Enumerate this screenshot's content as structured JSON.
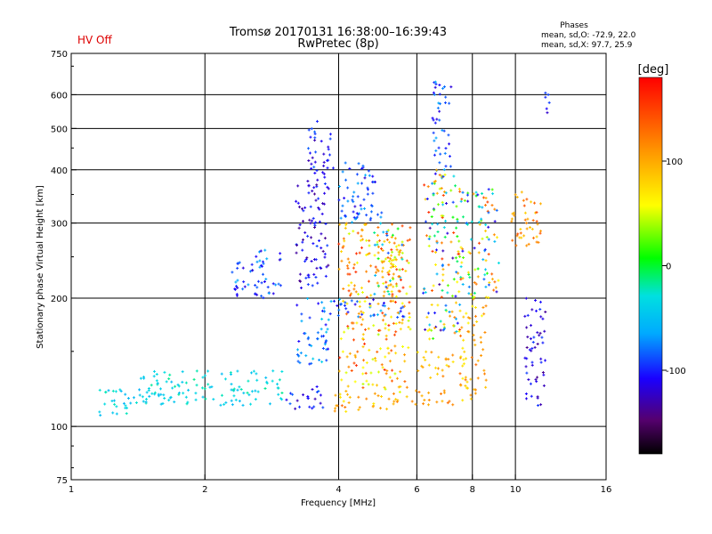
{
  "header": {
    "status": "HV Off",
    "status_color": "#dd0000",
    "title": "Tromsø 20170131 16:38:00–16:39:43",
    "subtitle": "RwPretec (8p)",
    "stats_heading": "Phases",
    "stats_o": "mean, sd,O: -72.9, 22.0",
    "stats_x": "mean, sd,X:  97.7, 25.9"
  },
  "chart_data": {
    "type": "scatter",
    "xlabel": "Frequency [MHz]",
    "ylabel": "Stationary phase Virtual Height [km]",
    "x_scale": "log",
    "y_scale": "log",
    "xlim": [
      1,
      16
    ],
    "ylim": [
      75,
      750
    ],
    "x_ticks": [
      1,
      2,
      4,
      6,
      8,
      10,
      16
    ],
    "y_ticks": [
      75,
      100,
      200,
      300,
      400,
      500,
      600,
      750
    ],
    "grid_x": [
      2,
      4,
      6,
      8,
      10
    ],
    "grid_y": [
      100,
      200,
      300,
      400,
      500,
      600
    ],
    "grid": true,
    "colorbar": {
      "label": "[deg]",
      "range": [
        -180,
        180
      ],
      "ticks": [
        {
          "value": 100,
          "label": "100"
        },
        {
          "value": 0,
          "label": "0"
        },
        {
          "value": -100,
          "label": "-100"
        }
      ]
    },
    "clusters": [
      {
        "x": [
          1.4,
          3.0
        ],
        "y": [
          112,
          135
        ],
        "phase": [
          -55,
          -15
        ]
      },
      {
        "x": [
          1.15,
          1.5
        ],
        "y": [
          105,
          122
        ],
        "phase": [
          -60,
          -20
        ]
      },
      {
        "x": [
          2.3,
          3.0
        ],
        "y": [
          200,
          260
        ],
        "phase": [
          -120,
          -60
        ]
      },
      {
        "x": [
          3.0,
          3.7
        ],
        "y": [
          110,
          125
        ],
        "phase": [
          -130,
          -80
        ]
      },
      {
        "x": [
          3.2,
          3.8
        ],
        "y": [
          210,
          400
        ],
        "phase": [
          -140,
          -90
        ]
      },
      {
        "x": [
          3.2,
          3.8
        ],
        "y": [
          140,
          200
        ],
        "phase": [
          -110,
          -40
        ]
      },
      {
        "x": [
          3.4,
          3.9
        ],
        "y": [
          400,
          520
        ],
        "phase": [
          -130,
          -80
        ]
      },
      {
        "x": [
          3.9,
          5.8
        ],
        "y": [
          108,
          120
        ],
        "phase": [
          60,
          130
        ]
      },
      {
        "x": [
          3.8,
          5.8
        ],
        "y": [
          180,
          200
        ],
        "phase": [
          -120,
          -50
        ]
      },
      {
        "x": [
          4.0,
          5.8
        ],
        "y": [
          120,
          300
        ],
        "phase": [
          40,
          160
        ]
      },
      {
        "x": [
          4.0,
          5.0
        ],
        "y": [
          300,
          420
        ],
        "phase": [
          -120,
          -60
        ]
      },
      {
        "x": [
          4.8,
          5.6
        ],
        "y": [
          200,
          300
        ],
        "phase": [
          -100,
          150
        ]
      },
      {
        "x": [
          5.8,
          7.5
        ],
        "y": [
          112,
          122
        ],
        "phase": [
          90,
          130
        ]
      },
      {
        "x": [
          6.0,
          7.3
        ],
        "y": [
          130,
          150
        ],
        "phase": [
          70,
          120
        ]
      },
      {
        "x": [
          6.2,
          7.5
        ],
        "y": [
          160,
          400
        ],
        "phase": [
          -140,
          160
        ]
      },
      {
        "x": [
          6.5,
          7.2
        ],
        "y": [
          400,
          650
        ],
        "phase": [
          -120,
          -60
        ]
      },
      {
        "x": [
          7.5,
          8.6
        ],
        "y": [
          115,
          200
        ],
        "phase": [
          60,
          130
        ]
      },
      {
        "x": [
          7.5,
          9.2
        ],
        "y": [
          200,
          360
        ],
        "phase": [
          -120,
          150
        ]
      },
      {
        "x": [
          9.8,
          11.5
        ],
        "y": [
          260,
          360
        ],
        "phase": [
          80,
          150
        ]
      },
      {
        "x": [
          10.5,
          11.7
        ],
        "y": [
          110,
          200
        ],
        "phase": [
          -140,
          -90
        ]
      },
      {
        "x": [
          11.5,
          12.0
        ],
        "y": [
          540,
          610
        ],
        "phase": [
          -130,
          -90
        ]
      }
    ]
  }
}
